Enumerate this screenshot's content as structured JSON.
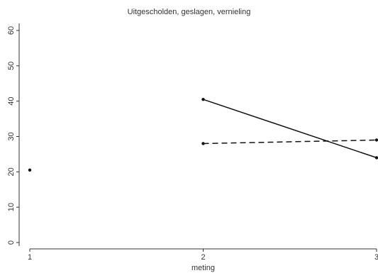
{
  "chart_data": {
    "type": "line",
    "title": "Uitgescholden, geslagen, vernieling",
    "xlabel": "meting",
    "ylabel": "",
    "x_ticks": [
      1,
      2,
      3
    ],
    "y_ticks": [
      0,
      10,
      20,
      30,
      40,
      50,
      60
    ],
    "xlim": [
      1,
      3
    ],
    "ylim": [
      -1,
      62
    ],
    "grid": false,
    "legend": "none",
    "series": [
      {
        "style": "solid",
        "points": [
          [
            2,
            40.5
          ],
          [
            3,
            24
          ]
        ]
      },
      {
        "style": "dashed",
        "points": [
          [
            2,
            28
          ],
          [
            3,
            29
          ]
        ]
      },
      {
        "style": "marker-only",
        "points": [
          [
            1,
            20.5
          ]
        ]
      }
    ]
  }
}
